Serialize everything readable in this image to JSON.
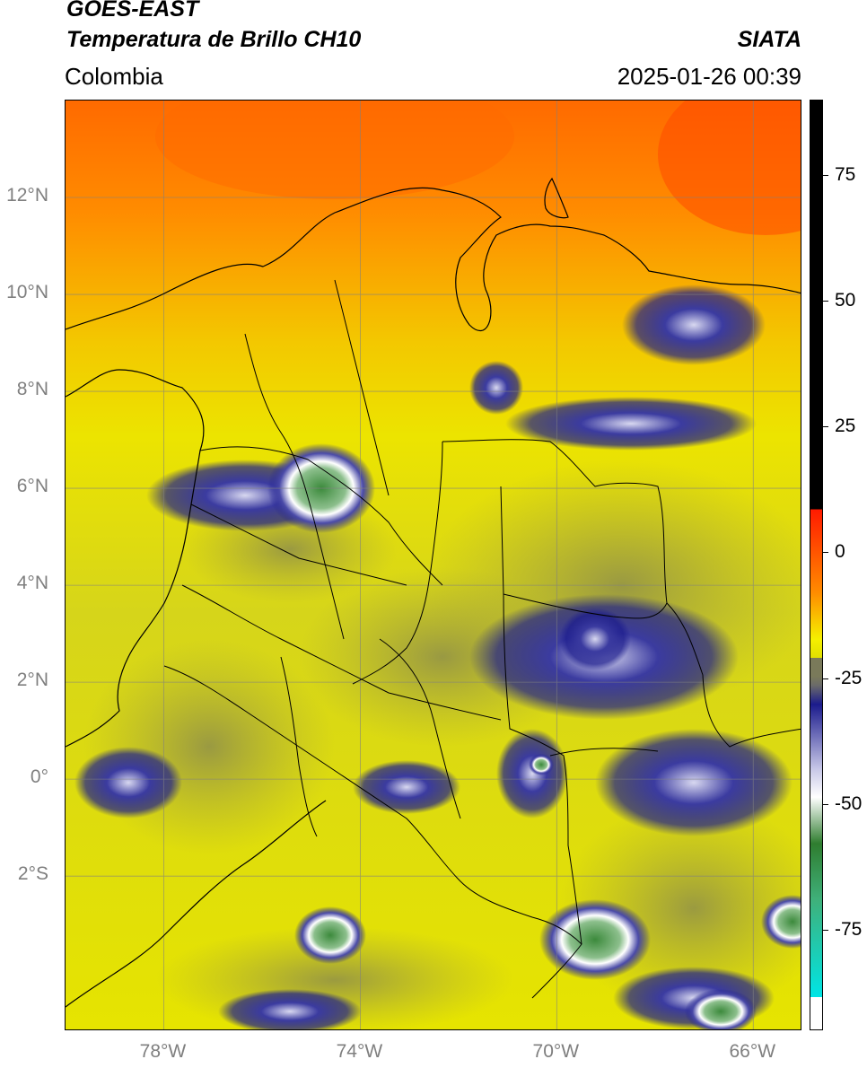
{
  "header": {
    "satellite": "GOES-EAST",
    "product": "Temperatura de Brillo CH10",
    "brand": "SIATA",
    "region": "Colombia",
    "timestamp": "2025-01-26 00:39"
  },
  "map": {
    "lat_labels": [
      {
        "text": "12°N",
        "deg": 12
      },
      {
        "text": "10°N",
        "deg": 10
      },
      {
        "text": "8°N",
        "deg": 8
      },
      {
        "text": "6°N",
        "deg": 6
      },
      {
        "text": "4°N",
        "deg": 4
      },
      {
        "text": "2°N",
        "deg": 2
      },
      {
        "text": "0°",
        "deg": 0
      },
      {
        "text": "2°S",
        "deg": -2
      }
    ],
    "lon_labels": [
      {
        "text": "78°W",
        "deg": -78
      },
      {
        "text": "74°W",
        "deg": -74
      },
      {
        "text": "70°W",
        "deg": -70
      },
      {
        "text": "66°W",
        "deg": -66
      }
    ],
    "extent": {
      "lon_min": -80,
      "lon_max": -65,
      "lat_min": -5.2,
      "lat_max": 14.0
    },
    "colors": {
      "warm": "#ff7f00",
      "mid": "#e9e800",
      "olive": "#a8a73a",
      "cold": "#1b1b8c",
      "white": "#ffffff",
      "green": "#3f8f3f"
    }
  },
  "colorbar": {
    "ticks": [
      {
        "text": "75",
        "value": 75
      },
      {
        "text": "50",
        "value": 50
      },
      {
        "text": "25",
        "value": 25
      },
      {
        "text": "0",
        "value": 0
      },
      {
        "text": "-25",
        "value": -25
      },
      {
        "text": "-50",
        "value": -50
      },
      {
        "text": "-75",
        "value": -75
      }
    ],
    "range": [
      -95,
      90
    ]
  }
}
